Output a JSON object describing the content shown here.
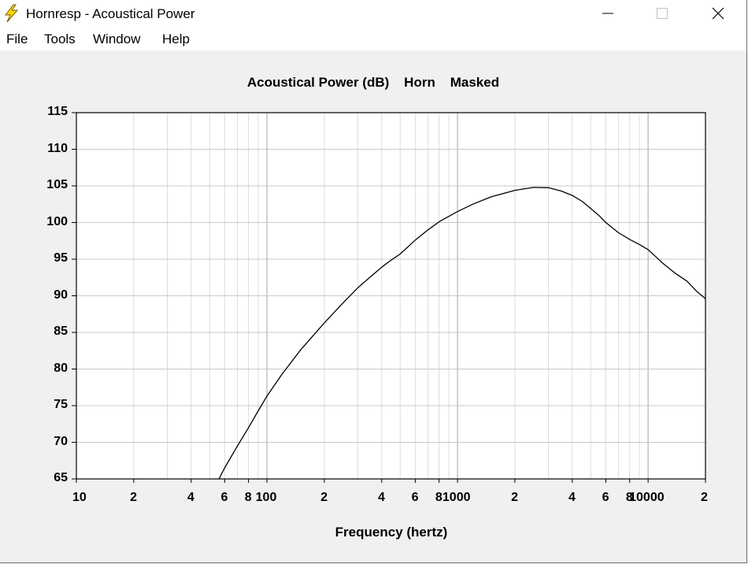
{
  "window": {
    "title": "Hornresp - Acoustical Power",
    "icon": "lightning-bolt-icon",
    "controls": [
      "minimize-icon",
      "maximize-icon",
      "close-icon"
    ]
  },
  "menu": {
    "items": [
      "File",
      "Tools",
      "Window",
      "Help"
    ]
  },
  "chart_data": {
    "type": "line",
    "title": "Acoustical Power (dB)    Horn    Masked",
    "xlabel": "Frequency (hertz)",
    "ylabel": "",
    "x_scale": "log",
    "xlim": [
      10,
      20000
    ],
    "ylim": [
      65,
      115
    ],
    "yticks": [
      "115",
      "110",
      "105",
      "100",
      "95",
      "90",
      "85",
      "80",
      "75",
      "70",
      "65"
    ],
    "xticks": [
      {
        "value": 10,
        "label": "10"
      },
      {
        "value": 20,
        "label": "2"
      },
      {
        "value": 40,
        "label": "4"
      },
      {
        "value": 60,
        "label": "6"
      },
      {
        "value": 80,
        "label": "8"
      },
      {
        "value": 100,
        "label": "100"
      },
      {
        "value": 200,
        "label": "2"
      },
      {
        "value": 400,
        "label": "4"
      },
      {
        "value": 600,
        "label": "6"
      },
      {
        "value": 800,
        "label": "8"
      },
      {
        "value": 1000,
        "label": "1000"
      },
      {
        "value": 2000,
        "label": "2"
      },
      {
        "value": 4000,
        "label": "4"
      },
      {
        "value": 6000,
        "label": "6"
      },
      {
        "value": 8000,
        "label": "8"
      },
      {
        "value": 10000,
        "label": "10000"
      },
      {
        "value": 20000,
        "label": "2"
      }
    ],
    "grid": true,
    "series": [
      {
        "color": "#000000",
        "points": [
          [
            56,
            65
          ],
          [
            60,
            66.5
          ],
          [
            70,
            69.5
          ],
          [
            80,
            72.0
          ],
          [
            90,
            74.3
          ],
          [
            100,
            76.3
          ],
          [
            120,
            79.3
          ],
          [
            150,
            82.6
          ],
          [
            200,
            86.3
          ],
          [
            250,
            89.0
          ],
          [
            300,
            91.1
          ],
          [
            350,
            92.6
          ],
          [
            400,
            93.9
          ],
          [
            450,
            94.9
          ],
          [
            500,
            95.7
          ],
          [
            600,
            97.6
          ],
          [
            700,
            99.0
          ],
          [
            800,
            100.1
          ],
          [
            1000,
            101.5
          ],
          [
            1200,
            102.5
          ],
          [
            1500,
            103.5
          ],
          [
            2000,
            104.4
          ],
          [
            2500,
            104.8
          ],
          [
            3000,
            104.75
          ],
          [
            3500,
            104.3
          ],
          [
            4000,
            103.7
          ],
          [
            4500,
            102.9
          ],
          [
            5000,
            101.9
          ],
          [
            5500,
            101.0
          ],
          [
            6000,
            100.0
          ],
          [
            7000,
            98.6
          ],
          [
            8000,
            97.7
          ],
          [
            9000,
            97.0
          ],
          [
            10000,
            96.3
          ],
          [
            11000,
            95.3
          ],
          [
            12000,
            94.4
          ],
          [
            14000,
            93.0
          ],
          [
            16000,
            92.0
          ],
          [
            18000,
            90.6
          ],
          [
            20000,
            89.6
          ]
        ]
      }
    ]
  }
}
